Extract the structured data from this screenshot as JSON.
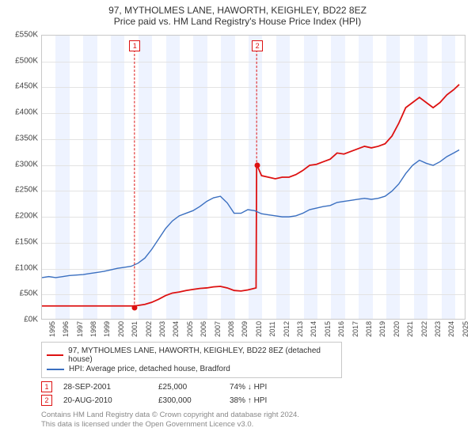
{
  "title_line1": "97, MYTHOLMES LANE, HAWORTH, KEIGHLEY, BD22 8EZ",
  "title_line2": "Price paid vs. HM Land Registry's House Price Index (HPI)",
  "colors": {
    "series_property": "#dd1111",
    "series_hpi": "#3a6fc0",
    "band": "#eef3ff",
    "grid": "#e3e3e3",
    "border": "#c8c8c8",
    "text": "#333333",
    "muted": "#888888",
    "background": "#ffffff"
  },
  "chart": {
    "type": "line",
    "y_min": 0,
    "y_max": 550,
    "y_step": 50,
    "y_prefix": "£",
    "y_suffix": "K",
    "x_min": 1995,
    "x_max": 2025.8,
    "x_tick_start": 1995,
    "x_tick_end": 2025,
    "x_tick_step": 1,
    "bands_alt_start": 1995,
    "sale_markers": [
      {
        "n": "1",
        "x": 2001.74,
        "y_top": 530,
        "dot_y": 25
      },
      {
        "n": "2",
        "x": 2010.64,
        "y_top": 530,
        "dot_y": 300
      }
    ],
    "series": [
      {
        "id": "property",
        "label": "97, MYTHOLMES LANE, HAWORTH, KEIGHLEY, BD22 8EZ (detached house)",
        "stroke_width": 1.8,
        "points": [
          [
            1995.0,
            25
          ],
          [
            1996,
            25
          ],
          [
            1997,
            25
          ],
          [
            1998,
            25
          ],
          [
            1999,
            25
          ],
          [
            2000,
            25
          ],
          [
            2001,
            25
          ],
          [
            2001.74,
            25
          ],
          [
            2002,
            26
          ],
          [
            2002.5,
            28
          ],
          [
            2003,
            32
          ],
          [
            2003.5,
            38
          ],
          [
            2004,
            45
          ],
          [
            2004.5,
            50
          ],
          [
            2005,
            52
          ],
          [
            2005.5,
            55
          ],
          [
            2006,
            57
          ],
          [
            2006.5,
            59
          ],
          [
            2007,
            60
          ],
          [
            2007.5,
            62
          ],
          [
            2008,
            63
          ],
          [
            2008.5,
            60
          ],
          [
            2009,
            55
          ],
          [
            2009.5,
            54
          ],
          [
            2010,
            56
          ],
          [
            2010.3,
            58
          ],
          [
            2010.6,
            60
          ],
          [
            2010.64,
            300
          ],
          [
            2011,
            278
          ],
          [
            2011.5,
            275
          ],
          [
            2012,
            272
          ],
          [
            2012.5,
            275
          ],
          [
            2013,
            275
          ],
          [
            2013.5,
            280
          ],
          [
            2014,
            288
          ],
          [
            2014.5,
            298
          ],
          [
            2015,
            300
          ],
          [
            2015.5,
            305
          ],
          [
            2016,
            310
          ],
          [
            2016.5,
            322
          ],
          [
            2017,
            320
          ],
          [
            2017.5,
            325
          ],
          [
            2018,
            330
          ],
          [
            2018.5,
            335
          ],
          [
            2019,
            332
          ],
          [
            2019.5,
            335
          ],
          [
            2020,
            340
          ],
          [
            2020.5,
            355
          ],
          [
            2021,
            380
          ],
          [
            2021.5,
            410
          ],
          [
            2022,
            420
          ],
          [
            2022.5,
            430
          ],
          [
            2023,
            420
          ],
          [
            2023.5,
            410
          ],
          [
            2024,
            420
          ],
          [
            2024.5,
            435
          ],
          [
            2025,
            445
          ],
          [
            2025.4,
            455
          ]
        ]
      },
      {
        "id": "hpi",
        "label": "HPI: Average price, detached house, Bradford",
        "stroke_width": 1.4,
        "points": [
          [
            1995.0,
            80
          ],
          [
            1995.5,
            82
          ],
          [
            1996,
            80
          ],
          [
            1996.5,
            82
          ],
          [
            1997,
            84
          ],
          [
            1997.5,
            85
          ],
          [
            1998,
            86
          ],
          [
            1998.5,
            88
          ],
          [
            1999,
            90
          ],
          [
            1999.5,
            92
          ],
          [
            2000,
            95
          ],
          [
            2000.5,
            98
          ],
          [
            2001,
            100
          ],
          [
            2001.5,
            102
          ],
          [
            2002,
            108
          ],
          [
            2002.5,
            118
          ],
          [
            2003,
            135
          ],
          [
            2003.5,
            155
          ],
          [
            2004,
            175
          ],
          [
            2004.5,
            190
          ],
          [
            2005,
            200
          ],
          [
            2005.5,
            205
          ],
          [
            2006,
            210
          ],
          [
            2006.5,
            218
          ],
          [
            2007,
            228
          ],
          [
            2007.5,
            235
          ],
          [
            2008,
            238
          ],
          [
            2008.5,
            225
          ],
          [
            2009,
            205
          ],
          [
            2009.5,
            205
          ],
          [
            2010,
            212
          ],
          [
            2010.5,
            210
          ],
          [
            2011,
            204
          ],
          [
            2011.5,
            202
          ],
          [
            2012,
            200
          ],
          [
            2012.5,
            198
          ],
          [
            2013,
            198
          ],
          [
            2013.5,
            200
          ],
          [
            2014,
            205
          ],
          [
            2014.5,
            212
          ],
          [
            2015,
            215
          ],
          [
            2015.5,
            218
          ],
          [
            2016,
            220
          ],
          [
            2016.5,
            226
          ],
          [
            2017,
            228
          ],
          [
            2017.5,
            230
          ],
          [
            2018,
            232
          ],
          [
            2018.5,
            234
          ],
          [
            2019,
            232
          ],
          [
            2019.5,
            234
          ],
          [
            2020,
            238
          ],
          [
            2020.5,
            248
          ],
          [
            2021,
            262
          ],
          [
            2021.5,
            282
          ],
          [
            2022,
            298
          ],
          [
            2022.5,
            308
          ],
          [
            2023,
            302
          ],
          [
            2023.5,
            298
          ],
          [
            2024,
            305
          ],
          [
            2024.5,
            315
          ],
          [
            2025,
            322
          ],
          [
            2025.4,
            328
          ]
        ]
      }
    ]
  },
  "legend": [
    {
      "color_key": "series_property",
      "label": "97, MYTHOLMES LANE, HAWORTH, KEIGHLEY, BD22 8EZ (detached house)"
    },
    {
      "color_key": "series_hpi",
      "label": "HPI: Average price, detached house, Bradford"
    }
  ],
  "sales_table": [
    {
      "n": "1",
      "date": "28-SEP-2001",
      "price": "£25,000",
      "rel": "74% ↓ HPI"
    },
    {
      "n": "2",
      "date": "20-AUG-2010",
      "price": "£300,000",
      "rel": "38% ↑ HPI"
    }
  ],
  "footer_line1": "Contains HM Land Registry data © Crown copyright and database right 2024.",
  "footer_line2": "This data is licensed under the Open Government Licence v3.0.",
  "typography": {
    "title_fontsize": 12,
    "axis_fontsize": 10,
    "legend_fontsize": 10,
    "footer_fontsize": 9.5
  }
}
